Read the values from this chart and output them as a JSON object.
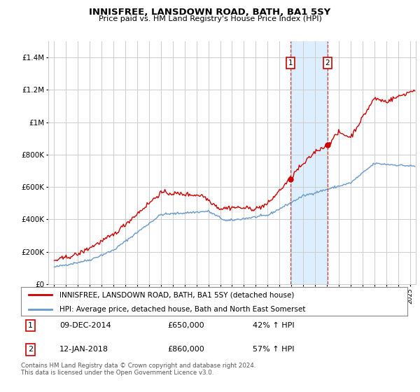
{
  "title": "INNISFREE, LANSDOWN ROAD, BATH, BA1 5SY",
  "subtitle": "Price paid vs. HM Land Registry's House Price Index (HPI)",
  "legend_label_red": "INNISFREE, LANSDOWN ROAD, BATH, BA1 5SY (detached house)",
  "legend_label_blue": "HPI: Average price, detached house, Bath and North East Somerset",
  "annotation1_date": "09-DEC-2014",
  "annotation1_price": "£650,000",
  "annotation1_hpi": "42% ↑ HPI",
  "annotation1_year": 2014.92,
  "annotation1_value": 650000,
  "annotation2_date": "12-JAN-2018",
  "annotation2_price": "£860,000",
  "annotation2_hpi": "57% ↑ HPI",
  "annotation2_year": 2018.04,
  "annotation2_value": 860000,
  "footer": "Contains HM Land Registry data © Crown copyright and database right 2024.\nThis data is licensed under the Open Government Licence v3.0.",
  "red_color": "#cc0000",
  "blue_color": "#6699cc",
  "shaded_color": "#ddeeff",
  "grid_color": "#cccccc",
  "background_color": "#ffffff",
  "ylim": [
    0,
    1500000
  ],
  "xlim_start": 1994.5,
  "xlim_end": 2025.5
}
